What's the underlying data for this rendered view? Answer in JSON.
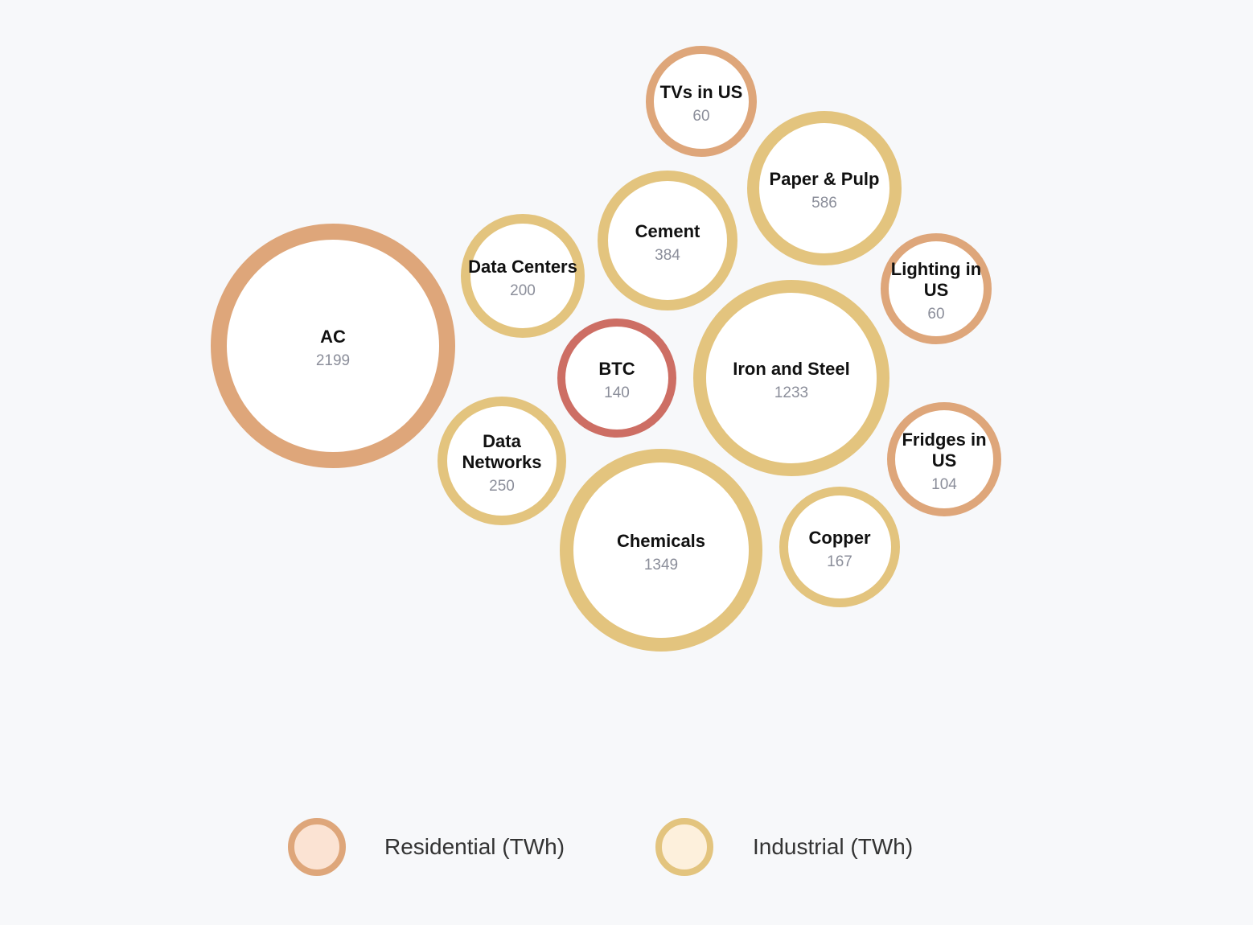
{
  "chart_data": {
    "type": "bubble",
    "unit": "TWh",
    "categories": [
      "Residential (TWh)",
      "Industrial (TWh)"
    ],
    "bubbles": [
      {
        "label": "AC",
        "value": 2199,
        "category": "residential"
      },
      {
        "label": "TVs in US",
        "value": 60,
        "category": "residential"
      },
      {
        "label": "Lighting in US",
        "value": 60,
        "category": "residential"
      },
      {
        "label": "Fridges in US",
        "value": 104,
        "category": "residential"
      },
      {
        "label": "BTC",
        "value": 140,
        "category": "btc"
      },
      {
        "label": "Data Centers",
        "value": 200,
        "category": "industrial"
      },
      {
        "label": "Cement",
        "value": 384,
        "category": "industrial"
      },
      {
        "label": "Paper & Pulp",
        "value": 586,
        "category": "industrial"
      },
      {
        "label": "Iron and Steel",
        "value": 1233,
        "category": "industrial"
      },
      {
        "label": "Data Networks",
        "value": 250,
        "category": "industrial"
      },
      {
        "label": "Chemicals",
        "value": 1349,
        "category": "industrial"
      },
      {
        "label": "Copper",
        "value": 167,
        "category": "industrial"
      }
    ],
    "legend": [
      {
        "label": "Residential (TWh)",
        "category": "residential"
      },
      {
        "label": "Industrial (TWh)",
        "category": "industrial"
      }
    ],
    "legend_placement": "bottom-center"
  },
  "colors": {
    "background": "#f7f8fa",
    "bubble_fill": "#ffffff",
    "residential_stroke": "#dea67a",
    "industrial_stroke": "#e3c47e",
    "btc_stroke": "#cd6e64",
    "residential_legend_fill": "#fbe3d3",
    "industrial_legend_fill": "#fdf0dc",
    "label_color": "#111111",
    "value_color": "#8b8e9a"
  }
}
